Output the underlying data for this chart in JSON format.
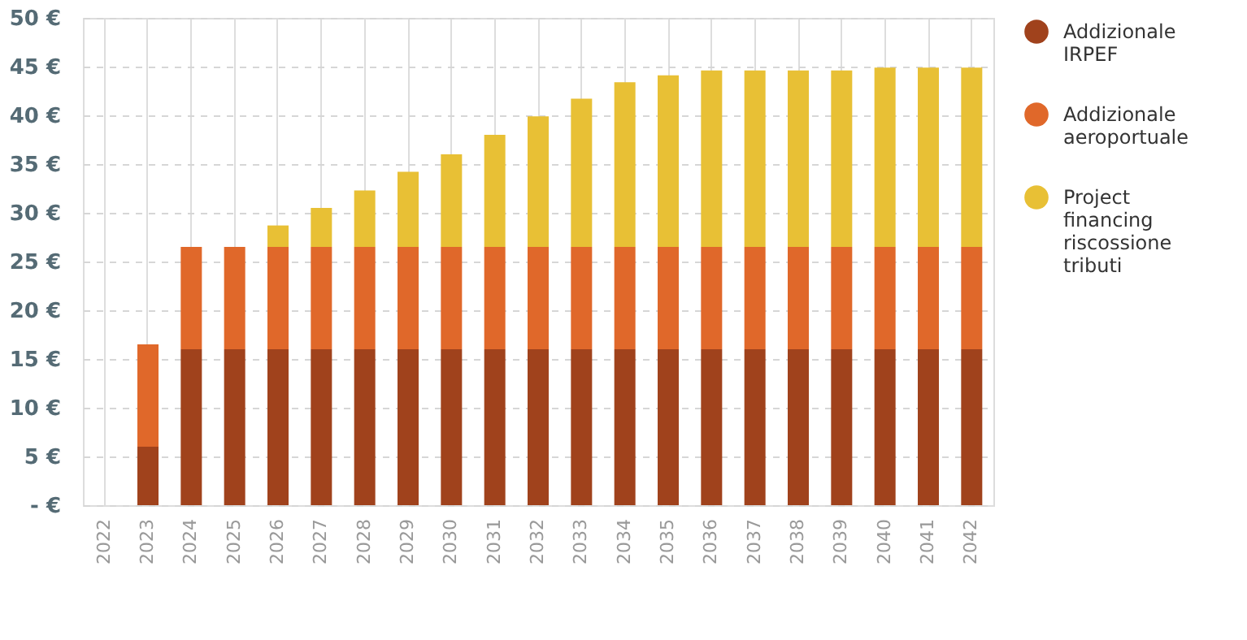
{
  "chart_data": {
    "type": "bar",
    "stacked": true,
    "categories": [
      "2022",
      "2023",
      "2024",
      "2025",
      "2026",
      "2027",
      "2028",
      "2029",
      "2030",
      "2031",
      "2032",
      "2033",
      "2034",
      "2035",
      "2036",
      "2037",
      "2038",
      "2039",
      "2040",
      "2041",
      "2042"
    ],
    "series": [
      {
        "name": "Addizionale IRPEF",
        "color": "#a0421c",
        "values": [
          0,
          6,
          16,
          16,
          16,
          16,
          16,
          16,
          16,
          16,
          16,
          16,
          16,
          16,
          16,
          16,
          16,
          16,
          16,
          16,
          16
        ]
      },
      {
        "name": "Addizionale aeroportuale",
        "color": "#e0682a",
        "values": [
          0,
          10.5,
          10.5,
          10.5,
          10.5,
          10.5,
          10.5,
          10.5,
          10.5,
          10.5,
          10.5,
          10.5,
          10.5,
          10.5,
          10.5,
          10.5,
          10.5,
          10.5,
          10.5,
          10.5,
          10.5
        ]
      },
      {
        "name": "Project financing riscossione tributi",
        "color": "#e8c035",
        "values": [
          0,
          0,
          0,
          0,
          2.2,
          4,
          5.8,
          7.7,
          9.5,
          11.5,
          13.4,
          15.2,
          16.9,
          17.6,
          18.1,
          18.1,
          18.1,
          18.1,
          18.4,
          18.4,
          18.4
        ]
      }
    ],
    "ylim": [
      0,
      50
    ],
    "yticks": [
      {
        "value": 0,
        "label": "- €"
      },
      {
        "value": 5,
        "label": "5 €"
      },
      {
        "value": 10,
        "label": "10 €"
      },
      {
        "value": 15,
        "label": "15 €"
      },
      {
        "value": 20,
        "label": "20 €"
      },
      {
        "value": 25,
        "label": "25 €"
      },
      {
        "value": 30,
        "label": "30 €"
      },
      {
        "value": 35,
        "label": "35 €"
      },
      {
        "value": 40,
        "label": "40 €"
      },
      {
        "value": 45,
        "label": "45 €"
      },
      {
        "value": 50,
        "label": "50 €"
      }
    ],
    "grid": true,
    "legend": "right"
  }
}
